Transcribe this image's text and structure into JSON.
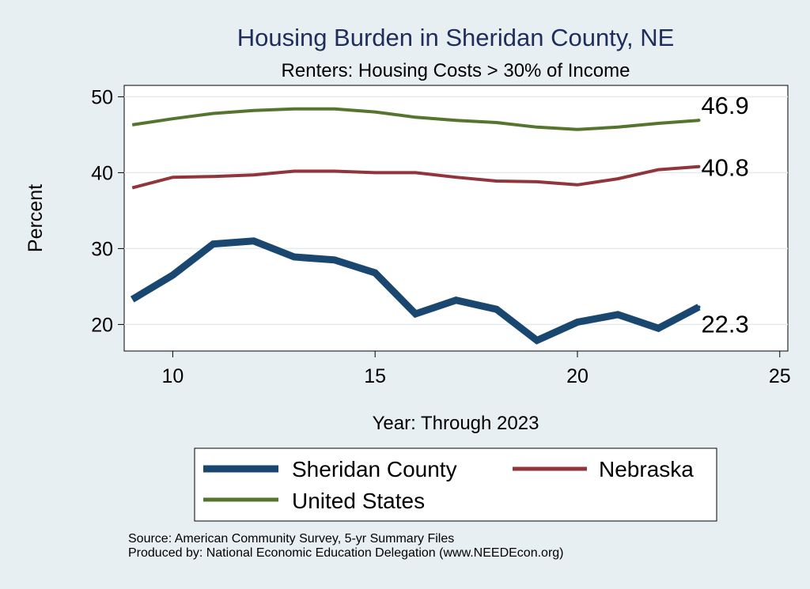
{
  "chart_data": {
    "type": "line",
    "title": "Housing Burden in Sheridan County, NE",
    "subtitle": "Renters: Housing Costs > 30% of Income",
    "xlabel": "Year: Through 2023",
    "ylabel": "Percent",
    "xlim": [
      8.8,
      25.2
    ],
    "ylim": [
      16.5,
      51.5
    ],
    "x_ticks": [
      10,
      15,
      20,
      25
    ],
    "y_ticks": [
      20,
      30,
      40,
      50
    ],
    "grid": true,
    "legend_position": "bottom",
    "x": [
      9,
      10,
      11,
      12,
      13,
      14,
      15,
      16,
      17,
      18,
      19,
      20,
      21,
      22,
      23
    ],
    "series": [
      {
        "name": "Sheridan County",
        "color": "#1a476f",
        "width": "thick",
        "values": [
          23.3,
          26.5,
          30.6,
          31.0,
          28.9,
          28.5,
          26.8,
          21.4,
          23.2,
          22.0,
          17.9,
          20.3,
          21.3,
          19.5,
          22.3
        ],
        "end_label": "22.3"
      },
      {
        "name": "Nebraska",
        "color": "#90353b",
        "width": "medium",
        "values": [
          38.0,
          39.4,
          39.5,
          39.7,
          40.2,
          40.2,
          40.0,
          40.0,
          39.4,
          38.9,
          38.8,
          38.4,
          39.2,
          40.4,
          40.8
        ],
        "end_label": "40.8"
      },
      {
        "name": "United States",
        "color": "#55752f",
        "width": "medium",
        "values": [
          46.3,
          47.1,
          47.8,
          48.2,
          48.4,
          48.4,
          48.0,
          47.3,
          46.9,
          46.6,
          46.0,
          45.7,
          46.0,
          46.5,
          46.9
        ],
        "end_label": "46.9"
      }
    ]
  },
  "notes": {
    "source": "Source: American Community Survey, 5-yr Summary Files",
    "producer": "Produced by: National Economic Education Delegation (www.NEEDEcon.org)"
  }
}
